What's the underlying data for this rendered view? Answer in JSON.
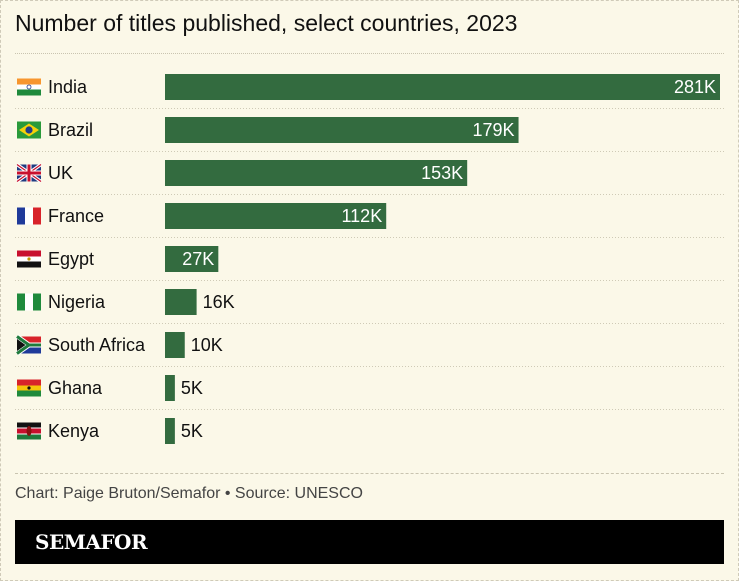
{
  "chart_data": {
    "type": "bar",
    "orientation": "horizontal",
    "title": "Number of titles published, select countries, 2023",
    "categories": [
      "India",
      "Brazil",
      "UK",
      "France",
      "Egypt",
      "Nigeria",
      "South Africa",
      "Ghana",
      "Kenya"
    ],
    "values": [
      281,
      179,
      153,
      112,
      27,
      16,
      10,
      5,
      5
    ],
    "data_labels": [
      "281K",
      "179K",
      "153K",
      "112K",
      "27K",
      "16K",
      "10K",
      "5K",
      "5K"
    ],
    "flag_icons": [
      "india-flag",
      "brazil-flag",
      "uk-flag",
      "france-flag",
      "egypt-flag",
      "nigeria-flag",
      "south-africa-flag",
      "ghana-flag",
      "kenya-flag"
    ],
    "xlim": [
      0,
      281
    ],
    "grid": false,
    "bar_color": "#336b3f"
  },
  "footer": {
    "credit": "Chart: Paige Bruton/Semafor • Source: UNESCO",
    "logo": "SEMAFOR"
  },
  "colors": {
    "background": "#fbf8e8",
    "bar": "#336b3f",
    "logo_bg": "#000000"
  }
}
